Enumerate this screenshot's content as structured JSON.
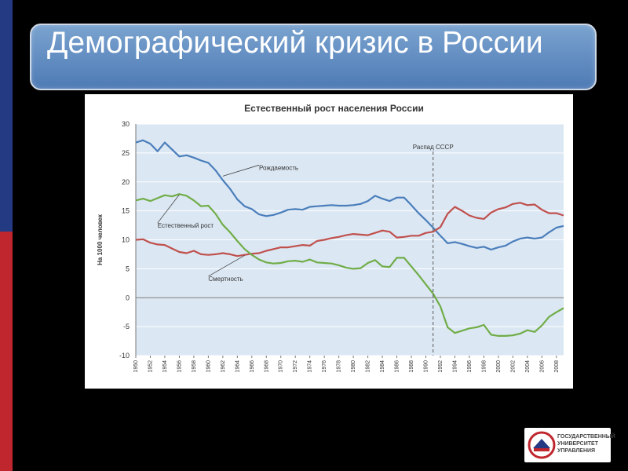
{
  "slide": {
    "title": "Демографический кризис в России"
  },
  "logo": {
    "lines": [
      "ГОСУДАРСТВЕННЫЙ",
      "УНИВЕРСИТЕТ",
      "УПРАВЛЕНИЯ"
    ]
  },
  "chart_data": {
    "type": "line",
    "title": "Естественный рост населения России",
    "ylabel": "На 1000 человек",
    "xlabel": "",
    "xlim": [
      1950,
      2009
    ],
    "ylim": [
      -10,
      30
    ],
    "yticks": [
      30,
      25,
      20,
      15,
      10,
      5,
      0,
      -5,
      -10
    ],
    "xticks": [
      "1950",
      "1952",
      "1954",
      "1956",
      "1958",
      "1960",
      "1962",
      "1964",
      "1966",
      "1968",
      "1970",
      "1972",
      "1974",
      "1976",
      "1978",
      "1980",
      "1982",
      "1984",
      "1986",
      "1988",
      "1990",
      "1992",
      "1994",
      "1996",
      "1998",
      "2000",
      "2002",
      "2004",
      "2006",
      "2008"
    ],
    "grid": true,
    "colors": {
      "births": "#4a7ebb",
      "deaths": "#c0504d",
      "natural": "#70ad47",
      "axis": "#777777",
      "plot_bg": "#dbe7f3"
    },
    "x": [
      1950,
      1951,
      1952,
      1953,
      1954,
      1955,
      1956,
      1957,
      1958,
      1959,
      1960,
      1961,
      1962,
      1963,
      1964,
      1965,
      1966,
      1967,
      1968,
      1969,
      1970,
      1971,
      1972,
      1973,
      1974,
      1975,
      1976,
      1977,
      1978,
      1979,
      1980,
      1981,
      1982,
      1983,
      1984,
      1985,
      1986,
      1987,
      1988,
      1989,
      1990,
      1991,
      1992,
      1993,
      1994,
      1995,
      1996,
      1997,
      1998,
      1999,
      2000,
      2001,
      2002,
      2003,
      2004,
      2005,
      2006,
      2007,
      2008,
      2009
    ],
    "series": [
      {
        "key": "births",
        "name": "Рождаемость",
        "values": [
          26.8,
          27.2,
          26.6,
          25.3,
          26.8,
          25.6,
          24.4,
          24.6,
          24.2,
          23.7,
          23.3,
          22.0,
          20.3,
          18.8,
          17.0,
          15.8,
          15.3,
          14.4,
          14.1,
          14.3,
          14.7,
          15.2,
          15.3,
          15.2,
          15.7,
          15.8,
          15.9,
          16.0,
          15.9,
          15.9,
          16.0,
          16.2,
          16.7,
          17.6,
          17.1,
          16.7,
          17.3,
          17.3,
          16.0,
          14.6,
          13.4,
          12.1,
          10.7,
          9.4,
          9.6,
          9.3,
          8.9,
          8.6,
          8.8,
          8.3,
          8.7,
          9.0,
          9.7,
          10.2,
          10.4,
          10.2,
          10.4,
          11.3,
          12.1,
          12.4
        ]
      },
      {
        "key": "deaths",
        "name": "Смертность",
        "values": [
          10.0,
          10.1,
          9.5,
          9.2,
          9.1,
          8.5,
          7.9,
          7.7,
          8.1,
          7.5,
          7.4,
          7.5,
          7.7,
          7.5,
          7.2,
          7.4,
          7.6,
          7.7,
          8.1,
          8.4,
          8.7,
          8.7,
          8.9,
          9.1,
          9.0,
          9.8,
          10.0,
          10.3,
          10.5,
          10.8,
          11.0,
          10.9,
          10.8,
          11.2,
          11.6,
          11.4,
          10.4,
          10.5,
          10.7,
          10.7,
          11.2,
          11.4,
          12.2,
          14.5,
          15.7,
          15.0,
          14.2,
          13.8,
          13.6,
          14.7,
          15.3,
          15.6,
          16.2,
          16.4,
          16.0,
          16.1,
          15.2,
          14.6,
          14.6,
          14.2
        ]
      },
      {
        "key": "natural",
        "name": "Естественный рост",
        "values": [
          16.8,
          17.1,
          16.7,
          17.2,
          17.7,
          17.5,
          17.9,
          17.6,
          16.8,
          15.8,
          15.9,
          14.5,
          12.6,
          11.3,
          9.8,
          8.4,
          7.4,
          6.6,
          6.1,
          5.9,
          6.0,
          6.3,
          6.4,
          6.2,
          6.6,
          6.1,
          6.0,
          5.9,
          5.6,
          5.2,
          5.0,
          5.1,
          6.0,
          6.5,
          5.4,
          5.3,
          6.9,
          6.9,
          5.4,
          3.9,
          2.3,
          0.7,
          -1.5,
          -5.1,
          -6.1,
          -5.7,
          -5.3,
          -5.1,
          -4.7,
          -6.4,
          -6.6,
          -6.6,
          -6.5,
          -6.2,
          -5.6,
          -5.9,
          -4.8,
          -3.3,
          -2.5,
          -1.8
        ]
      }
    ],
    "annotations": [
      {
        "kind": "label",
        "series": "births",
        "text": "Рождаемость",
        "at_x": 1967,
        "at_y": 22.5,
        "anchor_x": 1962,
        "anchor_y": 21.0
      },
      {
        "kind": "label",
        "series": "natural",
        "text": "Естественный рост",
        "at_x": 1953,
        "at_y": 12.5,
        "anchor_x": 1956,
        "anchor_y": 17.8
      },
      {
        "kind": "label",
        "series": "deaths",
        "text": "Смертность",
        "at_x": 1960,
        "at_y": 3.3,
        "anchor_x": 1965,
        "anchor_y": 7.3
      },
      {
        "kind": "vline",
        "text": "Распад СССР",
        "at_x": 1991
      }
    ]
  }
}
